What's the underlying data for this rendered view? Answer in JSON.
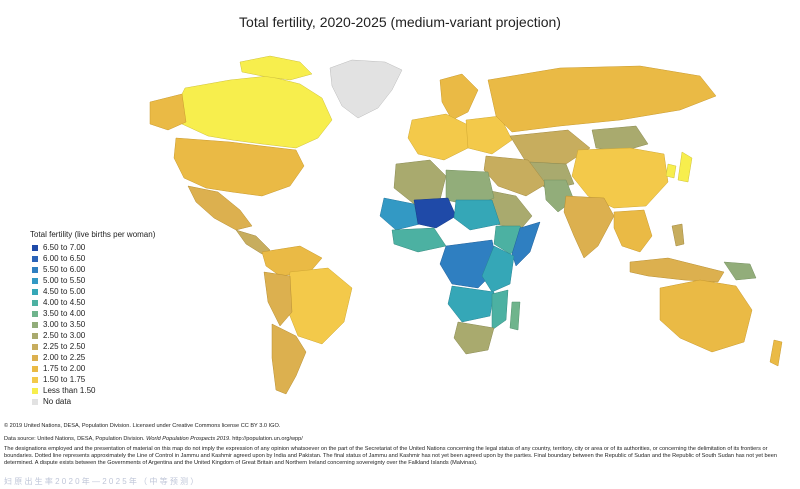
{
  "title": "Total fertility, 2020-2025 (medium-variant projection)",
  "legend": {
    "title": "Total fertility (live births per woman)",
    "items": [
      {
        "label": "6.50 to 7.00",
        "color": "#1f4aa8"
      },
      {
        "label": "6.00 to 6.50",
        "color": "#2b63b8"
      },
      {
        "label": "5.50 to 6.00",
        "color": "#2f7fc1"
      },
      {
        "label": "5.00 to 5.50",
        "color": "#3399c4"
      },
      {
        "label": "4.50 to 5.00",
        "color": "#35a7b7"
      },
      {
        "label": "4.00 to 4.50",
        "color": "#4cb1a2"
      },
      {
        "label": "3.50 to 4.00",
        "color": "#6fb48c"
      },
      {
        "label": "3.00 to 3.50",
        "color": "#92ad7a"
      },
      {
        "label": "2.50 to 3.00",
        "color": "#a9aa6e"
      },
      {
        "label": "2.25 to 2.50",
        "color": "#c7ad5e"
      },
      {
        "label": "2.00 to 2.25",
        "color": "#dcb04f"
      },
      {
        "label": "1.75 to 2.00",
        "color": "#eaba45"
      },
      {
        "label": "1.50 to 1.75",
        "color": "#f3c94a"
      },
      {
        "label": "Less than 1.50",
        "color": "#f7ee4d"
      },
      {
        "label": "No data",
        "color": "#e2e2e2"
      }
    ]
  },
  "footer": {
    "copyright": "© 2019 United Nations, DESA, Population Division. Licensed under Creative Commons license CC BY 3.0 IGO.",
    "source_prefix": "Data source: United Nations, DESA, Population Division. ",
    "source_title": "World Population Prospects 2019",
    "source_suffix": ". http://population.un.org/wpp/",
    "disclaimer": "The designations employed and the presentation of material on this map do not imply the expression of any opinion whatsoever on the part of the Secretariat of the United Nations concerning the legal status of any country, territory, city or area or of its authorities, or concerning the delimitation of its frontiers or boundaries. Dotted line represents approximately the Line of Control in Jammu and Kashmir agreed upon by India and Pakistan. The final status of Jammu and Kashmir has not yet been agreed upon by the parties. Final boundary between the Republic of Sudan and the Republic of South Sudan has not yet been determined. A dispute exists between the Governments of Argentina and the United Kingdom of Great Britain and Northern Ireland concerning sovereignty over the Falkland Islands (Malvinas).",
    "subtitle_overlay": "妇 原 出 生 率 2 0 2 0 年 — 2 0 2 5 年 （ 中 等 预 测 ）"
  }
}
